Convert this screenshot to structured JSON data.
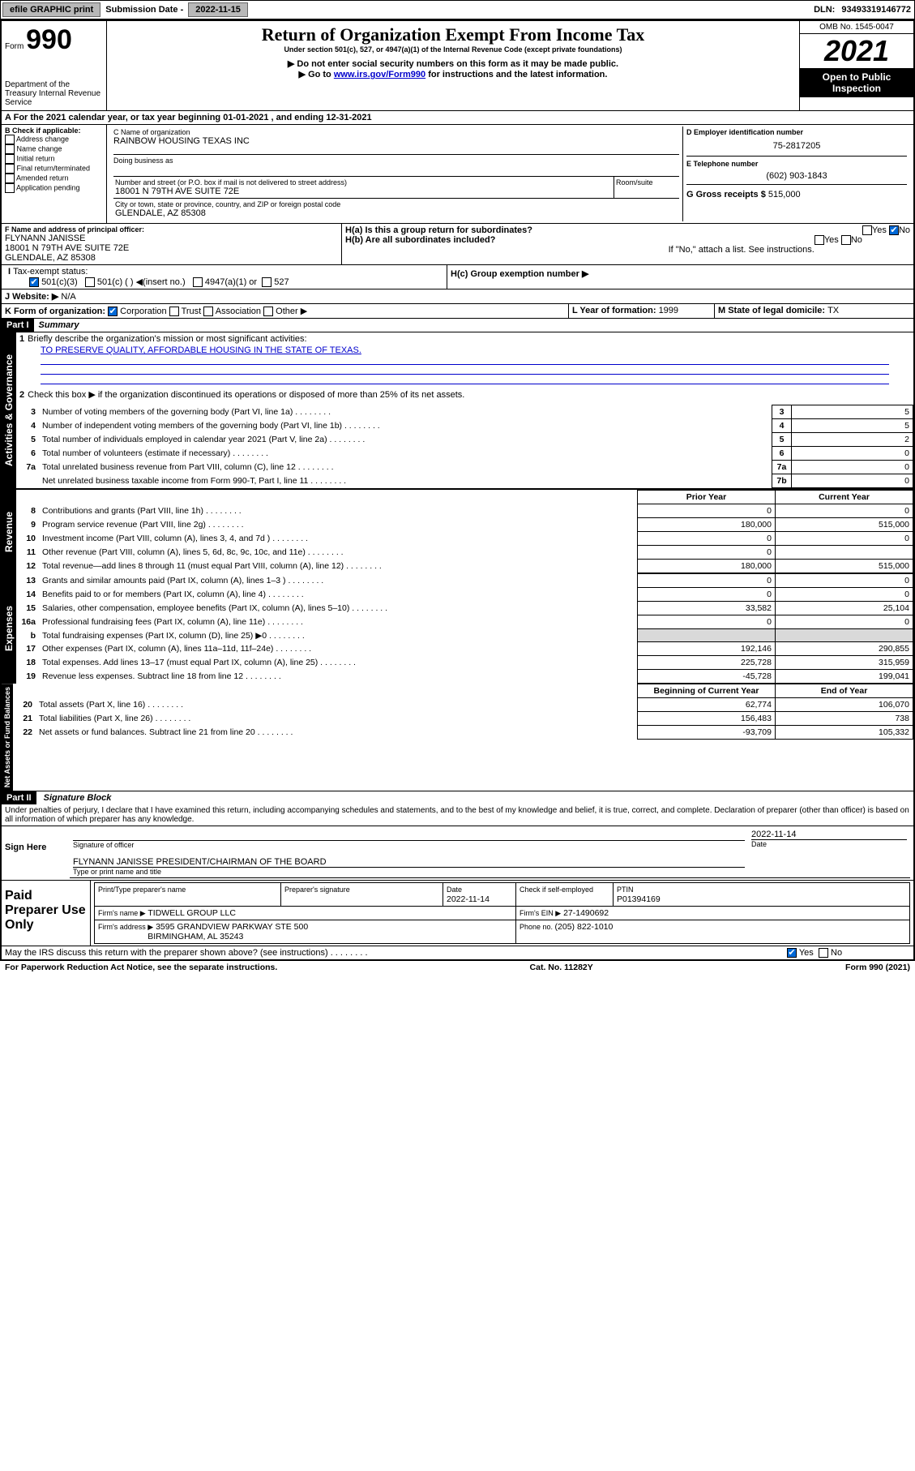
{
  "topbar": {
    "efile": "efile GRAPHIC print",
    "submission_label": "Submission Date - ",
    "submission_date": "2022-11-15",
    "dln_label": "DLN: ",
    "dln": "93493319146772"
  },
  "header": {
    "form_prefix": "Form",
    "form_number": "990",
    "dept": "Department of the Treasury\nInternal Revenue Service",
    "title": "Return of Organization Exempt From Income Tax",
    "sub1": "Under section 501(c), 527, or 4947(a)(1) of the Internal Revenue Code (except private foundations)",
    "sub2": "▶ Do not enter social security numbers on this form as it may be made public.",
    "sub3_pre": "▶ Go to ",
    "sub3_link": "www.irs.gov/Form990",
    "sub3_post": " for instructions and the latest information.",
    "omb": "OMB No. 1545-0047",
    "year": "2021",
    "open": "Open to Public Inspection"
  },
  "line_a": "For the 2021 calendar year, or tax year beginning 01-01-2021   , and ending 12-31-2021",
  "box_b": {
    "label": "B Check if applicable:",
    "opts": [
      "Address change",
      "Name change",
      "Initial return",
      "Final return/terminated",
      "Amended return",
      "Application pending"
    ]
  },
  "box_c": {
    "name_lbl": "C Name of organization",
    "name": "RAINBOW HOUSING TEXAS INC",
    "dba_lbl": "Doing business as",
    "addr_lbl": "Number and street (or P.O. box if mail is not delivered to street address)",
    "room_lbl": "Room/suite",
    "addr": "18001 N 79TH AVE SUITE 72E",
    "city_lbl": "City or town, state or province, country, and ZIP or foreign postal code",
    "city": "GLENDALE, AZ  85308"
  },
  "box_d": {
    "lbl": "D Employer identification number",
    "val": "75-2817205"
  },
  "box_e": {
    "lbl": "E Telephone number",
    "val": "(602) 903-1843"
  },
  "box_g": {
    "lbl": "G Gross receipts $ ",
    "val": "515,000"
  },
  "box_f": {
    "lbl": "F Name and address of principal officer:",
    "name": "FLYNANN JANISSE",
    "addr1": "18001 N 79TH AVE SUITE 72E",
    "addr2": "GLENDALE, AZ  85308"
  },
  "box_h": {
    "a_lbl": "H(a)  Is this a group return for subordinates?",
    "b_lbl": "H(b)  Are all subordinates included?",
    "note": "If \"No,\" attach a list. See instructions.",
    "c_lbl": "H(c)  Group exemption number ▶",
    "yes": "Yes",
    "no": "No"
  },
  "box_i": {
    "lbl": "Tax-exempt status:",
    "o1": "501(c)(3)",
    "o2": "501(c) (  ) ◀(insert no.)",
    "o3": "4947(a)(1) or",
    "o4": "527"
  },
  "box_j": {
    "lbl": "J   Website: ▶",
    "val": "N/A"
  },
  "box_k": {
    "lbl": "K Form of organization:",
    "o1": "Corporation",
    "o2": "Trust",
    "o3": "Association",
    "o4": "Other ▶"
  },
  "box_l": {
    "lbl": "L Year of formation: ",
    "val": "1999"
  },
  "box_m": {
    "lbl": "M State of legal domicile: ",
    "val": "TX"
  },
  "part1": {
    "hdr": "Part I",
    "ttl": "Summary",
    "q1": "Briefly describe the organization's mission or most significant activities:",
    "q1_ans": "TO PRESERVE QUALITY, AFFORDABLE HOUSING IN THE STATE OF TEXAS.",
    "q2": "Check this box ▶        if the organization discontinued its operations or disposed of more than 25% of its net assets.",
    "rows_ag": [
      {
        "n": "3",
        "t": "Number of voting members of the governing body (Part VI, line 1a)",
        "rn": "3",
        "v": "5"
      },
      {
        "n": "4",
        "t": "Number of independent voting members of the governing body (Part VI, line 1b)",
        "rn": "4",
        "v": "5"
      },
      {
        "n": "5",
        "t": "Total number of individuals employed in calendar year 2021 (Part V, line 2a)",
        "rn": "5",
        "v": "2"
      },
      {
        "n": "6",
        "t": "Total number of volunteers (estimate if necessary)",
        "rn": "6",
        "v": "0"
      },
      {
        "n": "7a",
        "t": "Total unrelated business revenue from Part VIII, column (C), line 12",
        "rn": "7a",
        "v": "0"
      },
      {
        "n": "",
        "t": "Net unrelated business taxable income from Form 990-T, Part I, line 11",
        "rn": "7b",
        "v": "0"
      }
    ],
    "col_prior": "Prior Year",
    "col_current": "Current Year",
    "rows_rev": [
      {
        "n": "8",
        "t": "Contributions and grants (Part VIII, line 1h)",
        "p": "0",
        "c": "0"
      },
      {
        "n": "9",
        "t": "Program service revenue (Part VIII, line 2g)",
        "p": "180,000",
        "c": "515,000"
      },
      {
        "n": "10",
        "t": "Investment income (Part VIII, column (A), lines 3, 4, and 7d )",
        "p": "0",
        "c": "0"
      },
      {
        "n": "11",
        "t": "Other revenue (Part VIII, column (A), lines 5, 6d, 8c, 9c, 10c, and 11e)",
        "p": "0",
        "c": ""
      },
      {
        "n": "12",
        "t": "Total revenue—add lines 8 through 11 (must equal Part VIII, column (A), line 12)",
        "p": "180,000",
        "c": "515,000"
      }
    ],
    "rows_exp": [
      {
        "n": "13",
        "t": "Grants and similar amounts paid (Part IX, column (A), lines 1–3 )",
        "p": "0",
        "c": "0"
      },
      {
        "n": "14",
        "t": "Benefits paid to or for members (Part IX, column (A), line 4)",
        "p": "0",
        "c": "0"
      },
      {
        "n": "15",
        "t": "Salaries, other compensation, employee benefits (Part IX, column (A), lines 5–10)",
        "p": "33,582",
        "c": "25,104"
      },
      {
        "n": "16a",
        "t": "Professional fundraising fees (Part IX, column (A), line 11e)",
        "p": "0",
        "c": "0"
      },
      {
        "n": "b",
        "t": "Total fundraising expenses (Part IX, column (D), line 25) ▶0",
        "p": "",
        "c": "",
        "gray": true
      },
      {
        "n": "17",
        "t": "Other expenses (Part IX, column (A), lines 11a–11d, 11f–24e)",
        "p": "192,146",
        "c": "290,855"
      },
      {
        "n": "18",
        "t": "Total expenses. Add lines 13–17 (must equal Part IX, column (A), line 25)",
        "p": "225,728",
        "c": "315,959"
      },
      {
        "n": "19",
        "t": "Revenue less expenses. Subtract line 18 from line 12",
        "p": "-45,728",
        "c": "199,041"
      }
    ],
    "col_begin": "Beginning of Current Year",
    "col_end": "End of Year",
    "rows_net": [
      {
        "n": "20",
        "t": "Total assets (Part X, line 16)",
        "p": "62,774",
        "c": "106,070"
      },
      {
        "n": "21",
        "t": "Total liabilities (Part X, line 26)",
        "p": "156,483",
        "c": "738"
      },
      {
        "n": "22",
        "t": "Net assets or fund balances. Subtract line 21 from line 20",
        "p": "-93,709",
        "c": "105,332"
      }
    ],
    "sect_ag": "Activities & Governance",
    "sect_rev": "Revenue",
    "sect_exp": "Expenses",
    "sect_net": "Net Assets or\nFund Balances"
  },
  "part2": {
    "hdr": "Part II",
    "ttl": "Signature Block",
    "decl": "Under penalties of perjury, I declare that I have examined this return, including accompanying schedules and statements, and to the best of my knowledge and belief, it is true, correct, and complete. Declaration of preparer (other than officer) is based on all information of which preparer has any knowledge.",
    "sign_here": "Sign Here",
    "sig_officer": "Signature of officer",
    "date": "Date",
    "sig_date": "2022-11-14",
    "officer": "FLYNANN JANISSE  PRESIDENT/CHAIRMAN OF THE BOARD",
    "type_name": "Type or print name and title",
    "paid": "Paid Preparer Use Only",
    "prep_name_lbl": "Print/Type preparer's name",
    "prep_sig_lbl": "Preparer's signature",
    "prep_date_lbl": "Date",
    "prep_date": "2022-11-14",
    "check_if": "Check        if self-employed",
    "ptin_lbl": "PTIN",
    "ptin": "P01394169",
    "firm_name_lbl": "Firm's name   ▶",
    "firm_name": "TIDWELL GROUP LLC",
    "firm_ein_lbl": "Firm's EIN ▶",
    "firm_ein": "27-1490692",
    "firm_addr_lbl": "Firm's address ▶",
    "firm_addr": "3595 GRANDVIEW PARKWAY STE 500",
    "firm_city": "BIRMINGHAM, AL  35243",
    "phone_lbl": "Phone no. ",
    "phone": "(205) 822-1010",
    "may_irs": "May the IRS discuss this return with the preparer shown above? (see instructions)"
  },
  "footer": {
    "l": "For Paperwork Reduction Act Notice, see the separate instructions.",
    "c": "Cat. No. 11282Y",
    "r": "Form 990 (2021)"
  }
}
